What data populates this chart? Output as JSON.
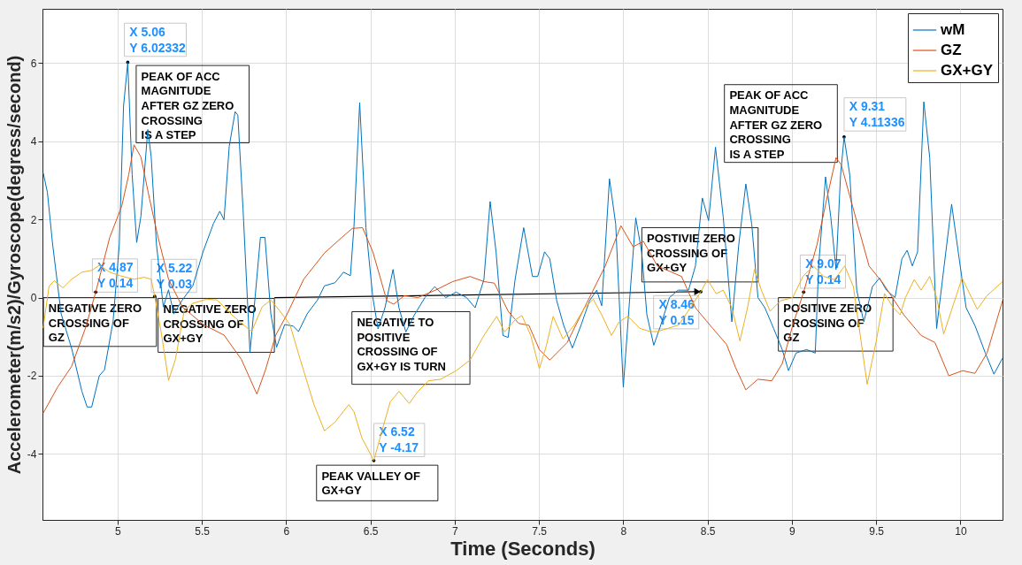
{
  "chart_data": {
    "type": "line",
    "xlabel": "Time (Seconds)",
    "ylabel": "Accelerometer(m/s2)/Gyroscope(degress/second)",
    "xlim": [
      4.554,
      10.25
    ],
    "ylim": [
      -5.69,
      7.39
    ],
    "xticks": [
      5,
      5.5,
      6,
      6.5,
      7,
      7.5,
      8,
      8.5,
      9,
      9.5,
      10
    ],
    "yticks": [
      -4,
      -2,
      0,
      2,
      4,
      6
    ],
    "grid": true,
    "legend": "top right",
    "series": [
      {
        "name": "wM",
        "color": "#0072bd",
        "x": [
          4.558,
          4.583,
          4.614,
          4.665,
          4.727,
          4.788,
          4.819,
          4.846,
          4.891,
          4.922,
          4.973,
          5.01,
          5.035,
          5.06,
          5.086,
          5.113,
          5.138,
          5.179,
          5.199,
          5.23,
          5.271,
          5.302,
          5.333,
          5.384,
          5.446,
          5.508,
          5.569,
          5.606,
          5.631,
          5.662,
          5.697,
          5.713,
          5.744,
          5.785,
          5.816,
          5.847,
          5.874,
          5.909,
          5.943,
          5.991,
          6.042,
          6.073,
          6.124,
          6.186,
          6.227,
          6.289,
          6.34,
          6.381,
          6.402,
          6.436,
          6.473,
          6.514,
          6.545,
          6.586,
          6.634,
          6.669,
          6.71,
          6.761,
          6.823,
          6.881,
          6.947,
          7.008,
          7.07,
          7.121,
          7.173,
          7.21,
          7.245,
          7.286,
          7.317,
          7.358,
          7.409,
          7.461,
          7.492,
          7.533,
          7.564,
          7.605,
          7.646,
          7.698,
          7.749,
          7.8,
          7.842,
          7.872,
          7.918,
          7.955,
          8.0,
          8.037,
          8.074,
          8.109,
          8.14,
          8.181,
          8.222,
          8.274,
          8.325,
          8.387,
          8.428,
          8.469,
          8.506,
          8.547,
          8.593,
          8.644,
          8.685,
          8.727,
          8.762,
          8.799,
          8.84,
          8.892,
          8.943,
          8.98,
          9.025,
          9.087,
          9.139,
          9.159,
          9.2,
          9.231,
          9.262,
          9.289,
          9.31,
          9.344,
          9.385,
          9.427,
          9.478,
          9.52,
          9.561,
          9.612,
          9.653,
          9.684,
          9.715,
          9.746,
          9.783,
          9.818,
          9.859,
          9.901,
          9.948,
          9.993,
          10.034,
          10.086,
          10.148,
          10.199,
          10.25
        ],
        "values": [
          3.2,
          2.7,
          1.37,
          -0.42,
          -1.3,
          -2.4,
          -2.8,
          -2.8,
          -2.0,
          -1.85,
          -0.6,
          1.37,
          4.9,
          6.02,
          3.15,
          1.41,
          2.08,
          4.3,
          3.6,
          1.37,
          -0.24,
          0.2,
          -0.42,
          -0.06,
          0.3,
          1.19,
          1.9,
          2.21,
          1.99,
          3.87,
          4.76,
          4.67,
          2.26,
          -1.4,
          0.03,
          1.54,
          1.54,
          -0.42,
          -1.27,
          -0.69,
          -0.73,
          -0.87,
          -0.42,
          -0.06,
          0.3,
          0.38,
          0.65,
          0.56,
          1.81,
          4.99,
          1.79,
          0.0,
          -0.8,
          -0.26,
          0.72,
          -0.26,
          -0.88,
          -0.44,
          0.0,
          0.28,
          0.0,
          0.14,
          0.0,
          -0.26,
          0.46,
          2.46,
          1.17,
          -0.97,
          -1.02,
          0.46,
          1.79,
          0.54,
          0.54,
          1.17,
          0.99,
          -0.08,
          -0.71,
          -1.29,
          -0.71,
          -0.08,
          0.19,
          -0.21,
          3.04,
          1.88,
          -2.29,
          -0.08,
          2.04,
          1.17,
          -0.44,
          -1.22,
          -0.71,
          0.0,
          0.19,
          0.19,
          0.81,
          2.55,
          1.97,
          3.85,
          2.06,
          -0.62,
          1.35,
          2.91,
          1.88,
          0.0,
          -0.26,
          -0.79,
          -1.33,
          -1.87,
          -1.42,
          -1.33,
          -1.42,
          0.81,
          3.09,
          2.06,
          0.72,
          3.13,
          4.11,
          3.13,
          0.19,
          -0.62,
          0.28,
          0.5,
          0.19,
          0.0,
          0.99,
          1.21,
          0.81,
          1.17,
          5.01,
          3.58,
          -0.79,
          0.72,
          2.39,
          0.99,
          -0.26,
          -0.71,
          -1.42,
          -1.96,
          -1.55
        ]
      },
      {
        "name": "GZ",
        "color": "#d95319",
        "x": [
          4.558,
          4.644,
          4.727,
          4.809,
          4.87,
          4.953,
          5.025,
          5.066,
          5.097,
          5.138,
          5.189,
          5.24,
          5.302,
          5.384,
          5.508,
          5.631,
          5.734,
          5.826,
          5.877,
          5.938,
          6.001,
          6.104,
          6.227,
          6.33,
          6.392,
          6.453,
          6.514,
          6.597,
          6.638,
          6.7,
          6.782,
          6.885,
          6.988,
          7.091,
          7.173,
          7.235,
          7.317,
          7.379,
          7.44,
          7.502,
          7.564,
          7.667,
          7.79,
          7.893,
          7.986,
          8.058,
          8.119,
          8.202,
          8.346,
          8.428,
          8.531,
          8.613,
          8.665,
          8.727,
          8.799,
          8.881,
          8.943,
          9.005,
          9.07,
          9.149,
          9.211,
          9.262,
          9.293,
          9.355,
          9.458,
          9.54,
          9.664,
          9.767,
          9.849,
          9.931,
          10.014,
          10.086,
          10.158,
          10.25
        ],
        "values": [
          -2.96,
          -2.29,
          -1.76,
          -0.78,
          0.14,
          1.54,
          2.35,
          3.15,
          3.91,
          3.6,
          2.53,
          1.54,
          0.47,
          -0.24,
          -0.69,
          -0.96,
          -1.58,
          -2.47,
          -1.85,
          -0.96,
          -0.46,
          0.47,
          1.14,
          1.54,
          1.77,
          1.79,
          1.17,
          -0.08,
          -0.17,
          0.05,
          0.0,
          0.19,
          0.41,
          0.54,
          0.41,
          0.37,
          -0.35,
          -0.66,
          -0.71,
          -1.33,
          -1.6,
          -1.15,
          -0.08,
          0.81,
          1.84,
          1.3,
          1.44,
          0.81,
          0.54,
          -0.26,
          -0.79,
          -1.2,
          -1.78,
          -2.36,
          -2.09,
          -2.13,
          -1.69,
          -0.71,
          0.14,
          1.35,
          2.6,
          3.58,
          3.4,
          2.42,
          0.81,
          0.37,
          -0.44,
          -0.97,
          -1.15,
          -2.0,
          -1.87,
          -1.94,
          -1.42,
          -0.08
        ]
      },
      {
        "name": "GX+GY",
        "color": "#edb120",
        "x": [
          4.558,
          4.593,
          4.624,
          4.675,
          4.727,
          4.788,
          4.85,
          4.891,
          4.953,
          5.014,
          5.097,
          5.158,
          5.199,
          5.22,
          5.261,
          5.302,
          5.343,
          5.395,
          5.446,
          5.528,
          5.59,
          5.672,
          5.795,
          5.857,
          5.909,
          5.96,
          6.022,
          6.083,
          6.165,
          6.227,
          6.289,
          6.371,
          6.402,
          6.449,
          6.52,
          6.576,
          6.617,
          6.669,
          6.73,
          6.782,
          6.844,
          6.916,
          7.008,
          7.091,
          7.173,
          7.249,
          7.296,
          7.358,
          7.399,
          7.451,
          7.502,
          7.543,
          7.584,
          7.642,
          7.708,
          7.77,
          7.821,
          7.872,
          7.93,
          7.975,
          8.027,
          8.099,
          8.16,
          8.202,
          8.33,
          8.46,
          8.5,
          8.551,
          8.593,
          8.644,
          8.692,
          8.737,
          8.778,
          8.819,
          8.871,
          8.933,
          9.005,
          9.066,
          9.128,
          9.19,
          9.252,
          9.314,
          9.365,
          9.406,
          9.447,
          9.499,
          9.55,
          9.602,
          9.643,
          9.674,
          9.726,
          9.767,
          9.818,
          9.859,
          9.901,
          9.952,
          10.01,
          10.055,
          10.1,
          10.158,
          10.25
        ],
        "values": [
          -0.78,
          0.29,
          0.43,
          0.25,
          0.47,
          0.65,
          0.7,
          0.83,
          0.65,
          0.56,
          0.47,
          0.52,
          0.47,
          0.03,
          -0.96,
          -2.12,
          -1.58,
          -0.33,
          -0.15,
          -0.04,
          -0.06,
          -0.42,
          -0.87,
          -0.24,
          -0.06,
          -0.33,
          -0.69,
          -1.58,
          -2.74,
          -3.41,
          -3.19,
          -2.74,
          -2.92,
          -3.59,
          -4.17,
          -3.29,
          -2.67,
          -2.4,
          -2.71,
          -2.4,
          -2.13,
          -2.09,
          -1.87,
          -1.6,
          -0.97,
          -0.48,
          -0.88,
          -0.57,
          -0.46,
          -0.97,
          -1.82,
          -1.24,
          -0.48,
          -1.06,
          -0.71,
          -0.26,
          -0.04,
          -0.44,
          -0.97,
          -0.62,
          -0.48,
          -0.79,
          -0.87,
          -0.87,
          -0.7,
          0.15,
          0.46,
          0.1,
          0.19,
          -0.26,
          -1.11,
          -0.26,
          0.72,
          0.19,
          -0.35,
          -0.08,
          0.0,
          0.54,
          0.81,
          0.54,
          0.46,
          0.81,
          0.28,
          -0.97,
          -2.22,
          -1.15,
          0.1,
          -0.26,
          -0.44,
          0.0,
          0.46,
          0.19,
          0.54,
          0.0,
          -0.93,
          -0.26,
          0.5,
          0.1,
          -0.3,
          0.05,
          0.41
        ]
      }
    ],
    "annotations": [
      {
        "text": "X 5.06\nY 6.02332",
        "x": 5.06,
        "y": 6.02332
      },
      "PEAK OF ACC\nMAGNITUDE\nAFTER GZ ZERO\nCROSSING\n IS A STEP",
      {
        "text": "X 4.87\nY 0.14",
        "x": 4.87,
        "y": 0.14
      },
      {
        "text": "X 5.22\nY 0.03",
        "x": 5.22,
        "y": 0.03
      },
      "NEGATIVE ZERO\nCROSSING OF\nGZ",
      "NEGATIVE ZERO\nCROSSING OF\nGX+GY",
      "NEGATIVE TO\nPOSITIVE\nCROSSING OF\nGX+GY IS TURN",
      {
        "text": "X 6.52\nY -4.17",
        "x": 6.52,
        "y": -4.17
      },
      "PEAK VALLEY OF\nGX+GY",
      "POSTIVIE ZERO\nCROSSING OF\nGX+GY",
      {
        "text": "X 8.46\nY 0.15",
        "x": 8.46,
        "y": 0.15
      },
      "PEAK OF ACC\nMAGNITUDE\nAFTER GZ ZERO\nCROSSING\n IS A STEP",
      {
        "text": "X 9.31\nY 4.11336",
        "x": 9.31,
        "y": 4.11336
      },
      {
        "text": "X 9.07\nY 0.14",
        "x": 9.07,
        "y": 0.14
      },
      "POSITIVE ZERO\nCROSSING OF\nGZ"
    ]
  }
}
